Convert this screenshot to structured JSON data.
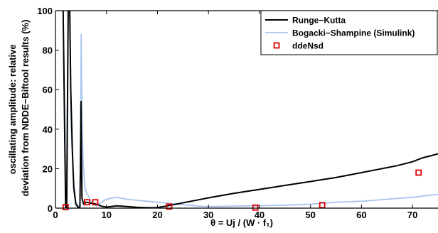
{
  "chart_data": {
    "type": "line",
    "xlabel": "θ = Uj / (W · f₁)",
    "ylabel": [
      "oscillating amplitude: relative",
      "deviation from NDDE−Biftool results (%)"
    ],
    "xlim": [
      0,
      75
    ],
    "ylim": [
      0,
      100
    ],
    "x_ticks": [
      0,
      10,
      20,
      30,
      40,
      50,
      60,
      70
    ],
    "y_ticks": [
      0,
      20,
      40,
      60,
      80,
      100
    ],
    "grid": false,
    "legend_position": "top-right",
    "series": [
      {
        "name": "Runge−Kutta",
        "color": "#000000",
        "style": "line",
        "x": [
          1.5,
          1.7,
          1.9,
          2.0,
          2.2,
          2.5,
          2.8,
          3.0,
          3.3,
          3.6,
          4.0,
          4.4,
          4.8,
          4.9,
          5.0,
          5.05,
          5.2,
          5.5,
          6.0,
          7.0,
          8.0,
          9.0,
          10.0,
          12.0,
          14.0,
          16.0,
          18.0,
          20.0,
          22.0,
          24.0,
          26.0,
          28.0,
          30.0,
          35.0,
          40.0,
          45.0,
          50.0,
          55.0,
          60.0,
          63.0,
          65.0,
          67.0,
          70.0,
          72.0,
          74.0,
          75.0
        ],
        "y": [
          100,
          60,
          20,
          0.5,
          0.3,
          100,
          100,
          60,
          30,
          10,
          2,
          0.5,
          0.5,
          20,
          54,
          40,
          5,
          2,
          3,
          2.5,
          2,
          1,
          0.5,
          1.2,
          0.8,
          0.4,
          0.2,
          0.3,
          1.2,
          2.2,
          3.2,
          4.2,
          5.2,
          7.5,
          9.5,
          11.5,
          13.5,
          15.5,
          18,
          19.5,
          20.5,
          21.5,
          23.5,
          25.5,
          26.8,
          27.5
        ]
      },
      {
        "name": "Bogacki−Shampine (Simulink)",
        "color": "#a9c4ee",
        "style": "line",
        "x": [
          1.5,
          1.8,
          2.0,
          2.2,
          2.5,
          2.8,
          3.1,
          3.5,
          4.0,
          4.5,
          4.8,
          4.95,
          5.05,
          5.15,
          5.4,
          5.7,
          6.0,
          6.5,
          7.0,
          8.0,
          9.0,
          10.0,
          12.0,
          14.0,
          16.0,
          18.0,
          20.0,
          22.0,
          24.0,
          26.0,
          28.0,
          30.0,
          35.0,
          40.0,
          45.0,
          50.0,
          55.0,
          60.0,
          65.0,
          70.0,
          75.0
        ],
        "y": [
          100,
          50,
          10,
          1,
          100,
          100,
          40,
          15,
          3,
          1,
          1,
          40,
          88,
          60,
          25,
          12,
          8,
          6,
          3,
          1,
          3,
          4.5,
          5.5,
          4.5,
          4,
          3.5,
          3,
          2.5,
          2,
          1.5,
          1,
          0.8,
          1,
          1.2,
          1.5,
          2,
          3,
          3.5,
          4.5,
          5.5,
          7
        ]
      },
      {
        "name": "ddeNsd",
        "color": "#dd0000",
        "style": "square-markers",
        "x": [
          2.0,
          6.2,
          7.8,
          22.3,
          39.2,
          52.3,
          71.2
        ],
        "y": [
          0.5,
          3.0,
          3.0,
          0.8,
          0.3,
          1.5,
          18.0
        ]
      }
    ]
  }
}
